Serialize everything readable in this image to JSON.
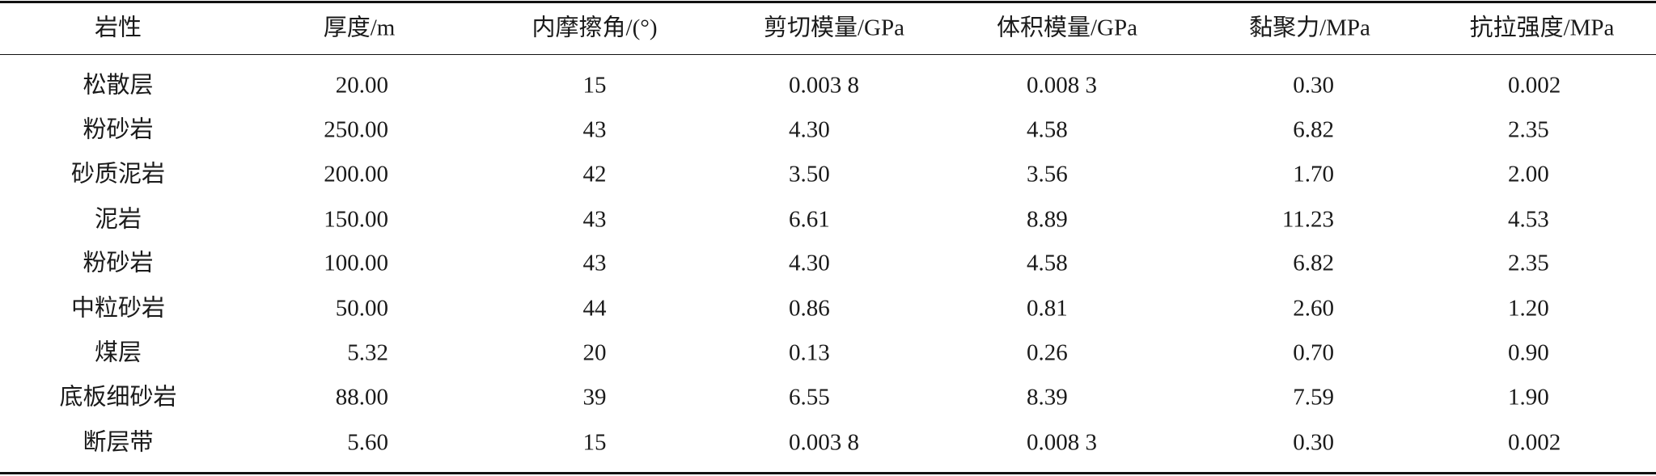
{
  "table": {
    "header": [
      "岩性",
      "厚度/m",
      "内摩擦角/(°)",
      "剪切模量/GPa",
      "体积模量/GPa",
      "黏聚力/MPa",
      "抗拉强度/MPa"
    ],
    "rows": [
      [
        "松散层",
        "20.00",
        "15",
        "0.003 8",
        "0.008 3",
        "0.30",
        "0.002"
      ],
      [
        "粉砂岩",
        "250.00",
        "43",
        "4.30",
        "4.58",
        "6.82",
        "2.35"
      ],
      [
        "砂质泥岩",
        "200.00",
        "42",
        "3.50",
        "3.56",
        "1.70",
        "2.00"
      ],
      [
        "泥岩",
        "150.00",
        "43",
        "6.61",
        "8.89",
        "11.23",
        "4.53"
      ],
      [
        "粉砂岩",
        "100.00",
        "43",
        "4.30",
        "4.58",
        "6.82",
        "2.35"
      ],
      [
        "中粒砂岩",
        "50.00",
        "44",
        "0.86",
        "0.81",
        "2.60",
        "1.20"
      ],
      [
        "煤层",
        "5.32",
        "20",
        "0.13",
        "0.26",
        "0.70",
        "0.90"
      ],
      [
        "底板细砂岩",
        "88.00",
        "39",
        "6.55",
        "8.39",
        "7.59",
        "1.90"
      ],
      [
        "断层带",
        "5.60",
        "15",
        "0.003 8",
        "0.008 3",
        "0.30",
        "0.002"
      ]
    ]
  }
}
